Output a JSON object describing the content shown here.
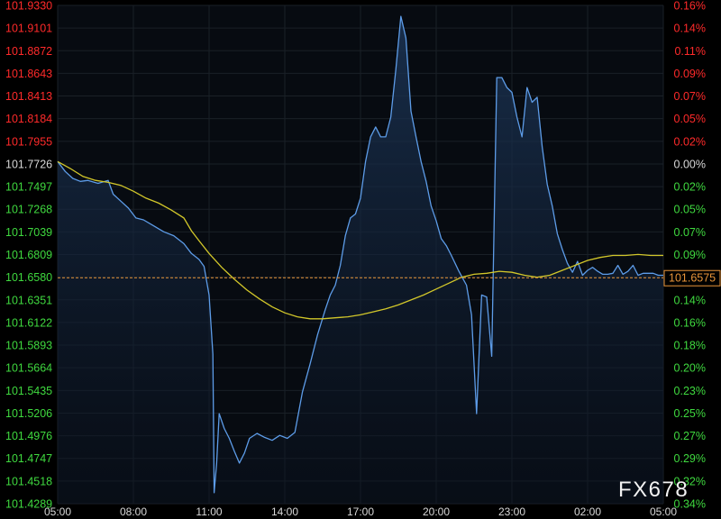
{
  "watermark": "FX678",
  "colors": {
    "background": "#000000",
    "plot_background": "#070b11",
    "grid": "#1a2027",
    "price_line": "#5d9ce8",
    "moving_average": "#d2c72a",
    "last_price_line": "#e8953a",
    "label_red": "#ff2a2a",
    "label_green": "#3fd93f",
    "label_neutral": "#d8d8d8"
  },
  "chart_data": {
    "type": "line",
    "reference_price": 101.7726,
    "last_price": 101.6575,
    "x_tick_labels": [
      "05:00",
      "08:00",
      "11:00",
      "14:00",
      "17:00",
      "20:00",
      "23:00",
      "02:00",
      "05:00"
    ],
    "y_tick_labels": [
      "101.9330",
      "101.9101",
      "101.8872",
      "101.8643",
      "101.8413",
      "101.8184",
      "101.7955",
      "101.7726",
      "101.7497",
      "101.7268",
      "101.7039",
      "101.6809",
      "101.6580",
      "101.6351",
      "101.6122",
      "101.5893",
      "101.5664",
      "101.5435",
      "101.5206",
      "101.4976",
      "101.4747",
      "101.4518",
      "101.4289"
    ],
    "y_tick_colors": [
      "red",
      "red",
      "red",
      "red",
      "red",
      "red",
      "red",
      "neutral",
      "green",
      "green",
      "green",
      "green",
      "green",
      "green",
      "green",
      "green",
      "green",
      "green",
      "green",
      "green",
      "green",
      "green",
      "green"
    ],
    "pct_tick_labels": [
      "0.16%",
      "0.14%",
      "0.11%",
      "0.09%",
      "0.07%",
      "0.05%",
      "0.02%",
      "0.00%",
      "0.02%",
      "0.05%",
      "0.07%",
      "0.09%",
      "0.11%",
      "0.14%",
      "0.16%",
      "0.18%",
      "0.20%",
      "0.23%",
      "0.25%",
      "0.27%",
      "0.29%",
      "0.32%",
      "0.34%"
    ],
    "ylim": [
      101.4289,
      101.933
    ],
    "xlim": [
      0,
      24
    ],
    "price_series": {
      "x": [
        0,
        0.3,
        0.6,
        0.9,
        1.2,
        1.6,
        2.0,
        2.2,
        2.5,
        2.8,
        3.1,
        3.4,
        3.8,
        4.2,
        4.6,
        5.0,
        5.3,
        5.6,
        5.8,
        6.0,
        6.15,
        6.2,
        6.3,
        6.4,
        6.6,
        6.8,
        7.0,
        7.2,
        7.4,
        7.6,
        7.9,
        8.2,
        8.5,
        8.8,
        9.1,
        9.4,
        9.7,
        10.0,
        10.3,
        10.6,
        10.8,
        11.0,
        11.2,
        11.4,
        11.6,
        11.8,
        12.0,
        12.2,
        12.4,
        12.6,
        12.8,
        13.0,
        13.2,
        13.4,
        13.6,
        13.8,
        14.0,
        14.2,
        14.4,
        14.6,
        14.8,
        15.0,
        15.2,
        15.4,
        15.6,
        15.9,
        16.2,
        16.4,
        16.6,
        16.8,
        17.0,
        17.2,
        17.4,
        17.6,
        17.8,
        18.0,
        18.2,
        18.4,
        18.6,
        18.8,
        19.0,
        19.2,
        19.4,
        19.6,
        19.8,
        20.0,
        20.2,
        20.4,
        20.6,
        20.8,
        21.0,
        21.2,
        21.4,
        21.6,
        21.8,
        22.0,
        22.2,
        22.4,
        22.6,
        22.8,
        23.0,
        23.2,
        23.4,
        23.6,
        23.8,
        24.0
      ],
      "y": [
        101.775,
        101.765,
        101.758,
        101.755,
        101.756,
        101.753,
        101.756,
        101.742,
        101.735,
        101.728,
        101.718,
        101.716,
        101.71,
        101.704,
        101.7,
        101.692,
        101.682,
        101.676,
        101.669,
        101.64,
        101.58,
        101.44,
        101.47,
        101.52,
        101.505,
        101.495,
        101.482,
        101.47,
        101.48,
        101.495,
        101.5,
        101.496,
        101.493,
        101.498,
        101.495,
        101.501,
        101.542,
        101.57,
        101.6,
        101.625,
        101.64,
        101.65,
        101.67,
        101.7,
        101.718,
        101.722,
        101.738,
        101.775,
        101.8,
        101.81,
        101.8,
        101.8,
        101.82,
        101.868,
        101.922,
        101.9,
        101.826,
        101.8,
        101.775,
        101.755,
        101.73,
        101.715,
        101.697,
        101.69,
        101.68,
        101.664,
        101.65,
        101.62,
        101.52,
        101.64,
        101.638,
        101.578,
        101.86,
        101.86,
        101.85,
        101.845,
        101.82,
        101.8,
        101.85,
        101.835,
        101.84,
        101.79,
        101.752,
        101.73,
        101.702,
        101.686,
        101.672,
        101.663,
        101.674,
        101.66,
        101.665,
        101.668,
        101.664,
        101.661,
        101.661,
        101.662,
        101.67,
        101.661,
        101.664,
        101.67,
        101.66,
        101.662,
        101.662,
        101.662,
        101.66,
        101.66
      ]
    },
    "moving_average_series": {
      "x": [
        0,
        0.5,
        1.0,
        1.5,
        2.0,
        2.5,
        3.0,
        3.5,
        4.0,
        4.5,
        5.0,
        5.3,
        5.6,
        6.0,
        6.5,
        7.0,
        7.5,
        8.0,
        8.5,
        9.0,
        9.5,
        10.0,
        10.5,
        11.0,
        11.5,
        12.0,
        12.5,
        13.0,
        13.5,
        14.0,
        14.5,
        15.0,
        15.5,
        16.0,
        16.5,
        17.0,
        17.5,
        18.0,
        18.5,
        19.0,
        19.5,
        20.0,
        20.5,
        21.0,
        21.5,
        22.0,
        22.5,
        23.0,
        23.5,
        24.0
      ],
      "y": [
        101.775,
        101.768,
        101.76,
        101.756,
        101.754,
        101.751,
        101.745,
        101.738,
        101.733,
        101.726,
        101.718,
        101.705,
        101.695,
        101.682,
        101.668,
        101.656,
        101.645,
        101.636,
        101.628,
        101.622,
        101.618,
        101.616,
        101.616,
        101.617,
        101.618,
        101.62,
        101.623,
        101.626,
        101.63,
        101.635,
        101.64,
        101.646,
        101.652,
        101.658,
        101.661,
        101.662,
        101.664,
        101.663,
        101.66,
        101.658,
        101.66,
        101.665,
        101.67,
        101.675,
        101.678,
        101.68,
        101.68,
        101.681,
        101.68,
        101.68
      ]
    }
  }
}
